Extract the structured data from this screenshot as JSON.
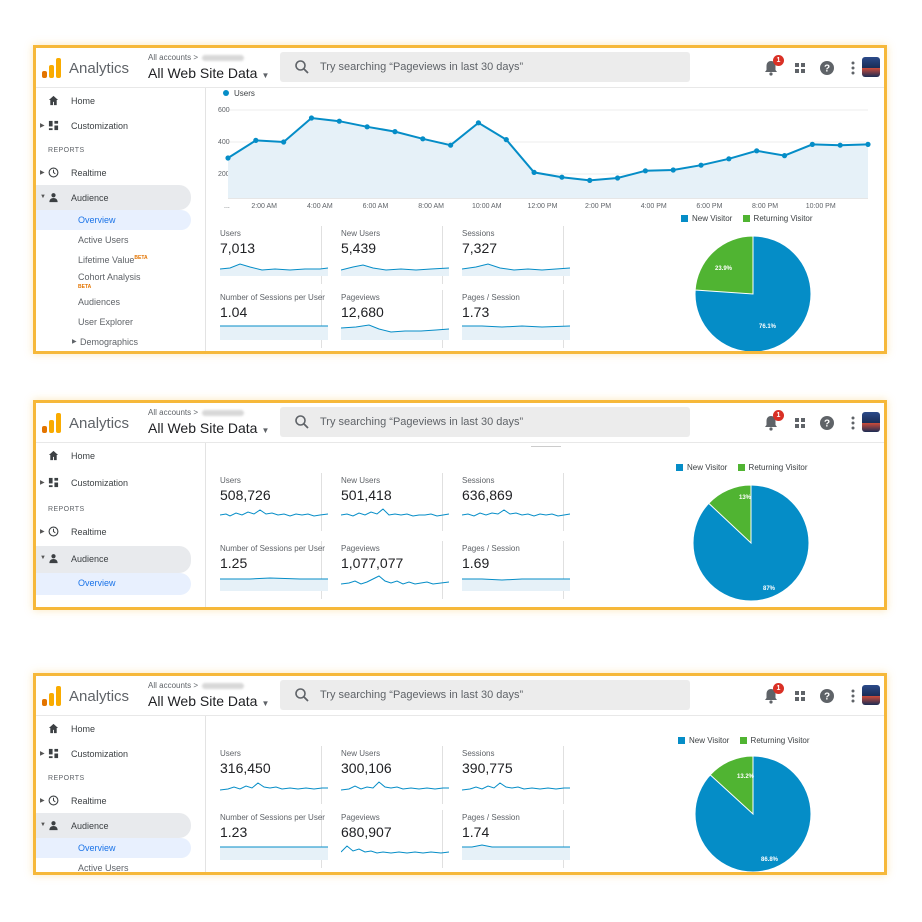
{
  "app": {
    "brand": "Analytics",
    "accounts_link": "All accounts",
    "accounts_sep": ">",
    "property": "All Web Site Data",
    "search_placeholder": "Try searching “Pageviews in last 30 days”",
    "notification_count": "1",
    "colors": {
      "accent": "#f6b83a",
      "blue": "#058dc7",
      "green": "#50b432",
      "logo_orange": "#f9ab00",
      "logo_dark": "#e37400"
    }
  },
  "icons": [
    "search-icon",
    "bell-icon",
    "apps-grid-icon",
    "help-icon",
    "more-vert-icon",
    "home-icon",
    "dashboard-icon",
    "clock-icon",
    "person-icon"
  ],
  "sidebar": {
    "home": "Home",
    "customization": "Customization",
    "reports": "REPORTS",
    "realtime": "Realtime",
    "audience": "Audience",
    "overview": "Overview",
    "active_users": "Active Users",
    "lifetime_value": "Lifetime Value",
    "cohort_analysis": "Cohort Analysis",
    "beta": "BETA",
    "audiences": "Audiences",
    "user_explorer": "User Explorer",
    "demographics": "Demographics"
  },
  "panel1": {
    "chart_data": {
      "type": "line",
      "series": [
        {
          "name": "Users",
          "values": [
            300,
            410,
            400,
            550,
            530,
            495,
            465,
            420,
            380,
            520,
            415,
            210,
            180,
            160,
            175,
            220,
            225,
            255,
            295,
            345,
            315,
            385,
            380,
            385
          ]
        }
      ],
      "x_tick_labels": [
        "...",
        "2:00 AM",
        "4:00 AM",
        "6:00 AM",
        "8:00 AM",
        "10:00 AM",
        "12:00 PM",
        "2:00 PM",
        "4:00 PM",
        "6:00 PM",
        "8:00 PM",
        "10:00 PM"
      ],
      "y_ticks": [
        200,
        400,
        600
      ],
      "ylim": [
        50,
        650
      ],
      "color": "#058dc7"
    },
    "tiles": [
      {
        "label": "Users",
        "value": "7,013"
      },
      {
        "label": "New Users",
        "value": "5,439"
      },
      {
        "label": "Sessions",
        "value": "7,327"
      },
      {
        "label": "Number of Sessions per User",
        "value": "1.04"
      },
      {
        "label": "Pageviews",
        "value": "12,680"
      },
      {
        "label": "Pages / Session",
        "value": "1.73"
      }
    ],
    "pie": {
      "legend_new": "New Visitor",
      "legend_returning": "Returning Visitor",
      "new_pct": 76.1,
      "returning_pct": 23.9,
      "new_label": "76.1%",
      "returning_label": "23.9%"
    }
  },
  "panel2": {
    "tiles": [
      {
        "label": "Users",
        "value": "508,726"
      },
      {
        "label": "New Users",
        "value": "501,418"
      },
      {
        "label": "Sessions",
        "value": "636,869"
      },
      {
        "label": "Number of Sessions per User",
        "value": "1.25"
      },
      {
        "label": "Pageviews",
        "value": "1,077,077"
      },
      {
        "label": "Pages / Session",
        "value": "1.69"
      }
    ],
    "pie": {
      "legend_new": "New Visitor",
      "legend_returning": "Returning Visitor",
      "new_pct": 87,
      "returning_pct": 13,
      "new_label": "87%",
      "returning_label": "13%"
    }
  },
  "panel3": {
    "tiles": [
      {
        "label": "Users",
        "value": "316,450"
      },
      {
        "label": "New Users",
        "value": "300,106"
      },
      {
        "label": "Sessions",
        "value": "390,775"
      },
      {
        "label": "Number of Sessions per User",
        "value": "1.23"
      },
      {
        "label": "Pageviews",
        "value": "680,907"
      },
      {
        "label": "Pages / Session",
        "value": "1.74"
      }
    ],
    "pie": {
      "legend_new": "New Visitor",
      "legend_returning": "Returning Visitor",
      "new_pct": 86.8,
      "returning_pct": 13.2,
      "new_label": "86.8%",
      "returning_label": "13.2%"
    }
  }
}
